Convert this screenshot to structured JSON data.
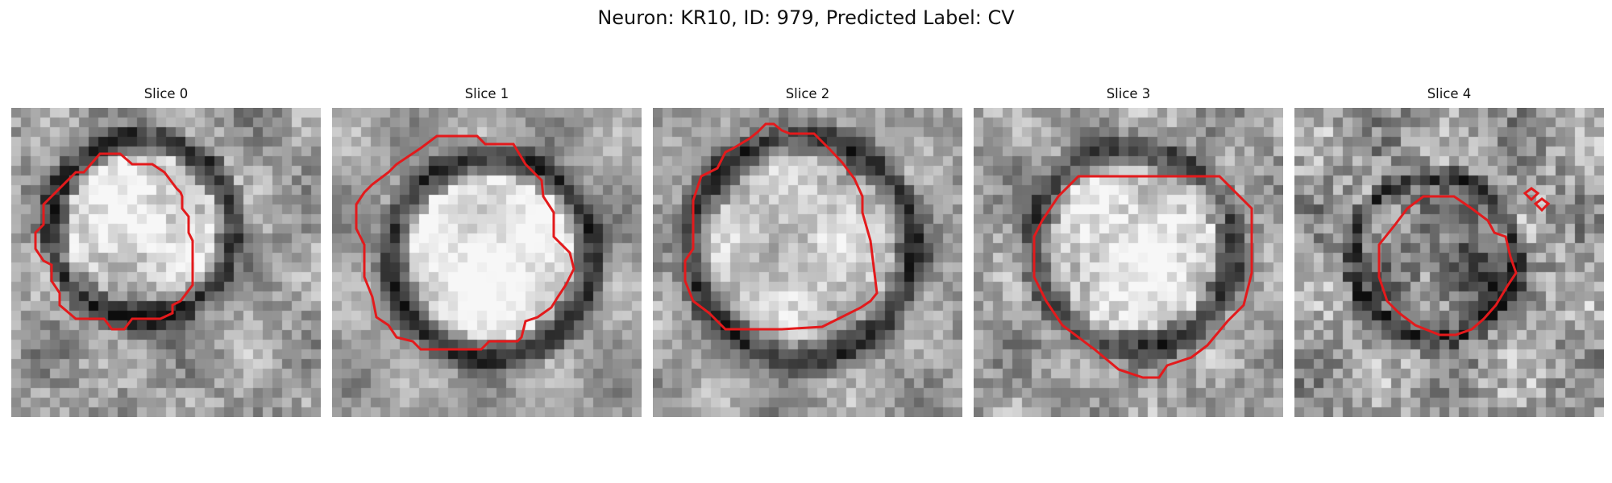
{
  "figure": {
    "title": "Neuron: KR10, ID: 979, Predicted Label: CV",
    "contour_color": "#e31a1c",
    "colormap": "gray",
    "panels": [
      {
        "label": "Slice 0",
        "seed": 11,
        "blob": "bright upper-left, dark lower region"
      },
      {
        "label": "Slice 1",
        "seed": 23,
        "blob": "bright round center with dark rim"
      },
      {
        "label": "Slice 2",
        "seed": 37,
        "blob": "bright round center with dark rim"
      },
      {
        "label": "Slice 3",
        "seed": 41,
        "blob": "bright center, dark lower rim"
      },
      {
        "label": "Slice 4",
        "seed": 53,
        "blob": "small region, dark lower-right core"
      }
    ]
  }
}
